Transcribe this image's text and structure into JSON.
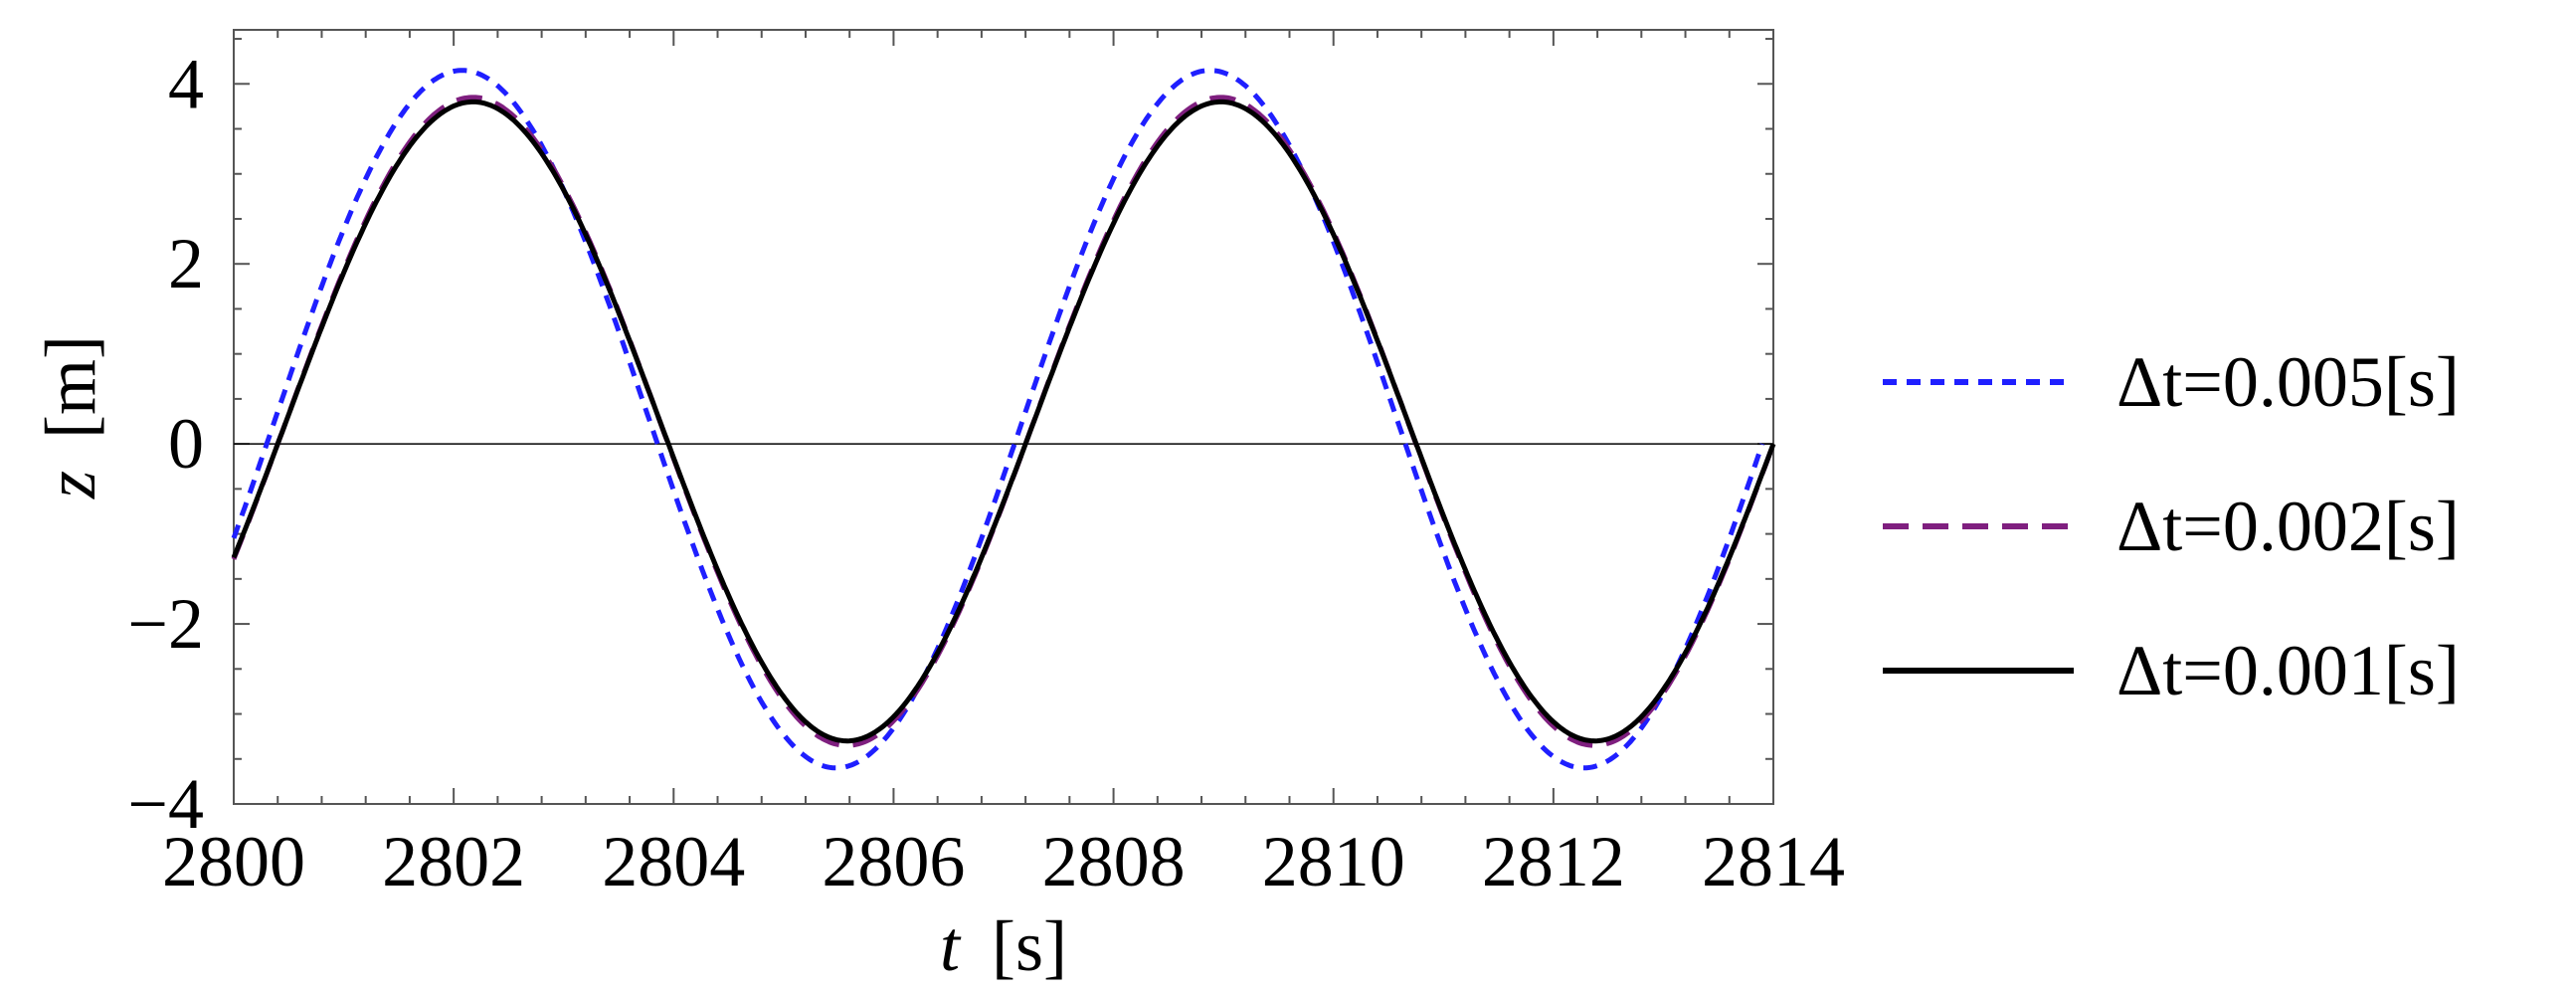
{
  "chart_data": {
    "type": "line",
    "title": "",
    "xlabel_var": "t",
    "xlabel_unit": "[s]",
    "ylabel_var": "z",
    "ylabel_unit": "[m]",
    "xlim": [
      2800,
      2814
    ],
    "ylim": [
      -4,
      4.6
    ],
    "xticks": [
      2800,
      2802,
      2804,
      2806,
      2808,
      2810,
      2812,
      2814
    ],
    "yticks": [
      -4,
      -2,
      0,
      2,
      4
    ],
    "grid": false,
    "zero_line": true,
    "legend_position": "right",
    "period_s": 6.8,
    "series": [
      {
        "name": "Δt=0.005[s]",
        "color": "#1f1fff",
        "style": "short-dash",
        "x": [
          2800.0,
          2800.3,
          2801.0,
          2802.2,
          2803.0,
          2804.0,
          2805.6,
          2807.0,
          2808.0,
          2809.0,
          2810.0,
          2810.8,
          2812.4,
          2813.0,
          2813.9
        ],
        "y": [
          -1.1,
          0.0,
          2.7,
          4.15,
          3.2,
          0.3,
          -3.6,
          -0.1,
          3.2,
          4.15,
          2.4,
          0.2,
          -3.6,
          -2.4,
          1.0
        ]
      },
      {
        "name": "Δt=0.002[s]",
        "color": "#7f1f7f",
        "style": "long-dash",
        "x": [
          2800.0,
          2800.4,
          2801.0,
          2802.2,
          2803.0,
          2804.1,
          2805.6,
          2807.0,
          2808.0,
          2808.9,
          2810.0,
          2810.9,
          2812.4,
          2813.0,
          2814.0
        ],
        "y": [
          -1.2,
          0.0,
          2.5,
          3.85,
          3.1,
          0.1,
          -3.35,
          0.0,
          3.0,
          3.85,
          2.4,
          0.0,
          -3.35,
          -2.4,
          0.85
        ]
      },
      {
        "name": "Δt=0.001[s]",
        "color": "#000000",
        "style": "solid",
        "x": [
          2800.0,
          2800.4,
          2801.0,
          2802.2,
          2803.0,
          2804.1,
          2805.6,
          2807.0,
          2808.0,
          2808.9,
          2810.0,
          2810.9,
          2812.3,
          2813.0,
          2814.0
        ],
        "y": [
          -1.15,
          0.0,
          2.4,
          3.8,
          3.0,
          0.05,
          -3.3,
          0.0,
          2.9,
          3.8,
          2.3,
          0.0,
          -3.3,
          -2.4,
          0.85
        ]
      }
    ]
  }
}
